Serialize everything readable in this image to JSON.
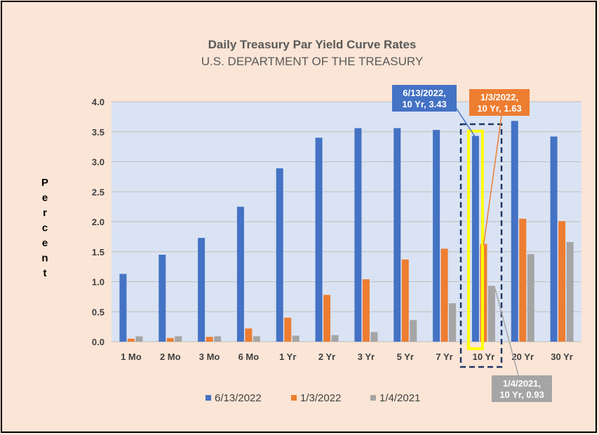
{
  "chart_data": {
    "type": "bar",
    "title": "Daily Treasury Par Yield Curve Rates",
    "subtitle": "U.S. DEPARTMENT OF THE TREASURY",
    "ylabel": "Percent",
    "xlabel": "",
    "ylim": [
      0,
      4.0
    ],
    "yticks": [
      "0.0",
      "0.5",
      "1.0",
      "1.5",
      "2.0",
      "2.5",
      "3.0",
      "3.5",
      "4.0"
    ],
    "grid": true,
    "legend_position": "bottom",
    "categories": [
      "1 Mo",
      "2 Mo",
      "3 Mo",
      "6 Mo",
      "1 Yr",
      "2 Yr",
      "3 Yr",
      "5 Yr",
      "7 Yr",
      "10 Yr",
      "20 Yr",
      "30 Yr"
    ],
    "series": [
      {
        "name": "6/13/2022",
        "color": "#4472c4",
        "values": [
          1.13,
          1.45,
          1.73,
          2.25,
          2.89,
          3.4,
          3.56,
          3.56,
          3.53,
          3.43,
          3.68,
          3.42
        ]
      },
      {
        "name": "1/3/2022",
        "color": "#ed7d31",
        "values": [
          0.05,
          0.06,
          0.08,
          0.22,
          0.4,
          0.78,
          1.04,
          1.37,
          1.55,
          1.63,
          2.05,
          2.01
        ]
      },
      {
        "name": "1/4/2021",
        "color": "#a5a5a5",
        "values": [
          0.09,
          0.09,
          0.09,
          0.09,
          0.1,
          0.11,
          0.16,
          0.36,
          0.64,
          0.93,
          1.46,
          1.66
        ]
      }
    ],
    "highlight_category": "10 Yr",
    "highlight_color": "#ffff00",
    "annotations": [
      {
        "series": 0,
        "category": "10 Yr",
        "line1": "6/13/2022,",
        "line2": "10 Yr, 3.43",
        "color": "#4472c4"
      },
      {
        "series": 1,
        "category": "10 Yr",
        "line1": "1/3/2022,",
        "line2": "10 Yr, 1.63",
        "color": "#ed7d31"
      },
      {
        "series": 2,
        "category": "10 Yr",
        "line1": "1/4/2021,",
        "line2": "10 Yr, 0.93",
        "color": "#a5a5a5"
      }
    ],
    "colors": {
      "plot_background": "#dae3f3",
      "gridline": "#bfbfbf",
      "page_background": "#fbe5d6"
    }
  }
}
